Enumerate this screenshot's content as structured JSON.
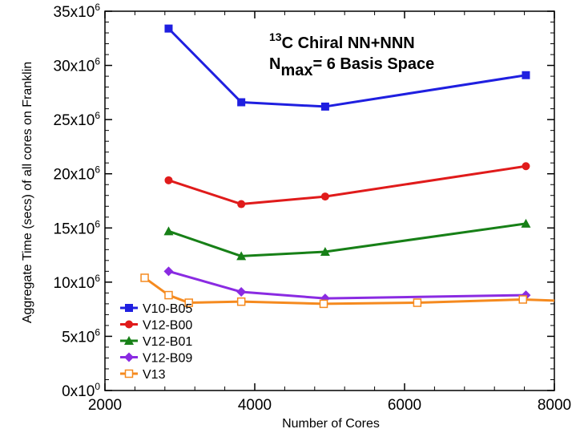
{
  "chart_data": {
    "type": "line",
    "xlabel": "Number of Cores",
    "ylabel": "Aggregate Time (secs) of all cores on Franklin",
    "xlim": [
      2000,
      8000
    ],
    "ylim": [
      0,
      35000000
    ],
    "x_ticks": [
      {
        "value": 2000,
        "label": "2000"
      },
      {
        "value": 4000,
        "label": "4000"
      },
      {
        "value": 6000,
        "label": "6000"
      },
      {
        "value": 8000,
        "label": "8000"
      }
    ],
    "y_ticks": [
      {
        "value": 0,
        "mant": "0x10",
        "exp": "0"
      },
      {
        "value": 5000000,
        "mant": "5x10",
        "exp": "6"
      },
      {
        "value": 10000000,
        "mant": "10x10",
        "exp": "6"
      },
      {
        "value": 15000000,
        "mant": "15x10",
        "exp": "6"
      },
      {
        "value": 20000000,
        "mant": "20x10",
        "exp": "6"
      },
      {
        "value": 25000000,
        "mant": "25x10",
        "exp": "6"
      },
      {
        "value": 30000000,
        "mant": "30x10",
        "exp": "6"
      },
      {
        "value": 35000000,
        "mant": "35x10",
        "exp": "6"
      }
    ],
    "annotation": {
      "line1": {
        "pre": "",
        "sup": "13",
        "main": "C  Chiral NN+NNN"
      },
      "line2": {
        "main": "N",
        "sub": "max",
        "rest": "= 6 Basis Space"
      }
    },
    "legend_position": "bottom-left",
    "grid": false,
    "series": [
      {
        "name": "V10-B05",
        "color": "#1f1fe0",
        "marker": "square",
        "x": [
          2850,
          3820,
          4940,
          7620
        ],
        "y": [
          33400000,
          26600000,
          26200000,
          29100000
        ]
      },
      {
        "name": "V12-B00",
        "color": "#e01b1b",
        "marker": "circle",
        "x": [
          2850,
          3820,
          4940,
          7620
        ],
        "y": [
          19400000,
          17200000,
          17900000,
          20700000
        ]
      },
      {
        "name": "V12-B01",
        "color": "#178017",
        "marker": "triangle",
        "x": [
          2850,
          3820,
          4940,
          7620
        ],
        "y": [
          14700000,
          12400000,
          12800000,
          15400000
        ]
      },
      {
        "name": "V12-B09",
        "color": "#8a2be2",
        "marker": "diamond",
        "x": [
          2850,
          3820,
          4940,
          7620
        ],
        "y": [
          11000000,
          9100000,
          8500000,
          8800000
        ]
      },
      {
        "name": "V13",
        "color": "#f58a1f",
        "marker": "open-square",
        "x": [
          2530,
          2850,
          3120,
          3820,
          4920,
          6170,
          7580,
          8000
        ],
        "y": [
          10400000,
          8800000,
          8100000,
          8200000,
          8000000,
          8100000,
          8400000,
          8300000
        ]
      }
    ]
  }
}
